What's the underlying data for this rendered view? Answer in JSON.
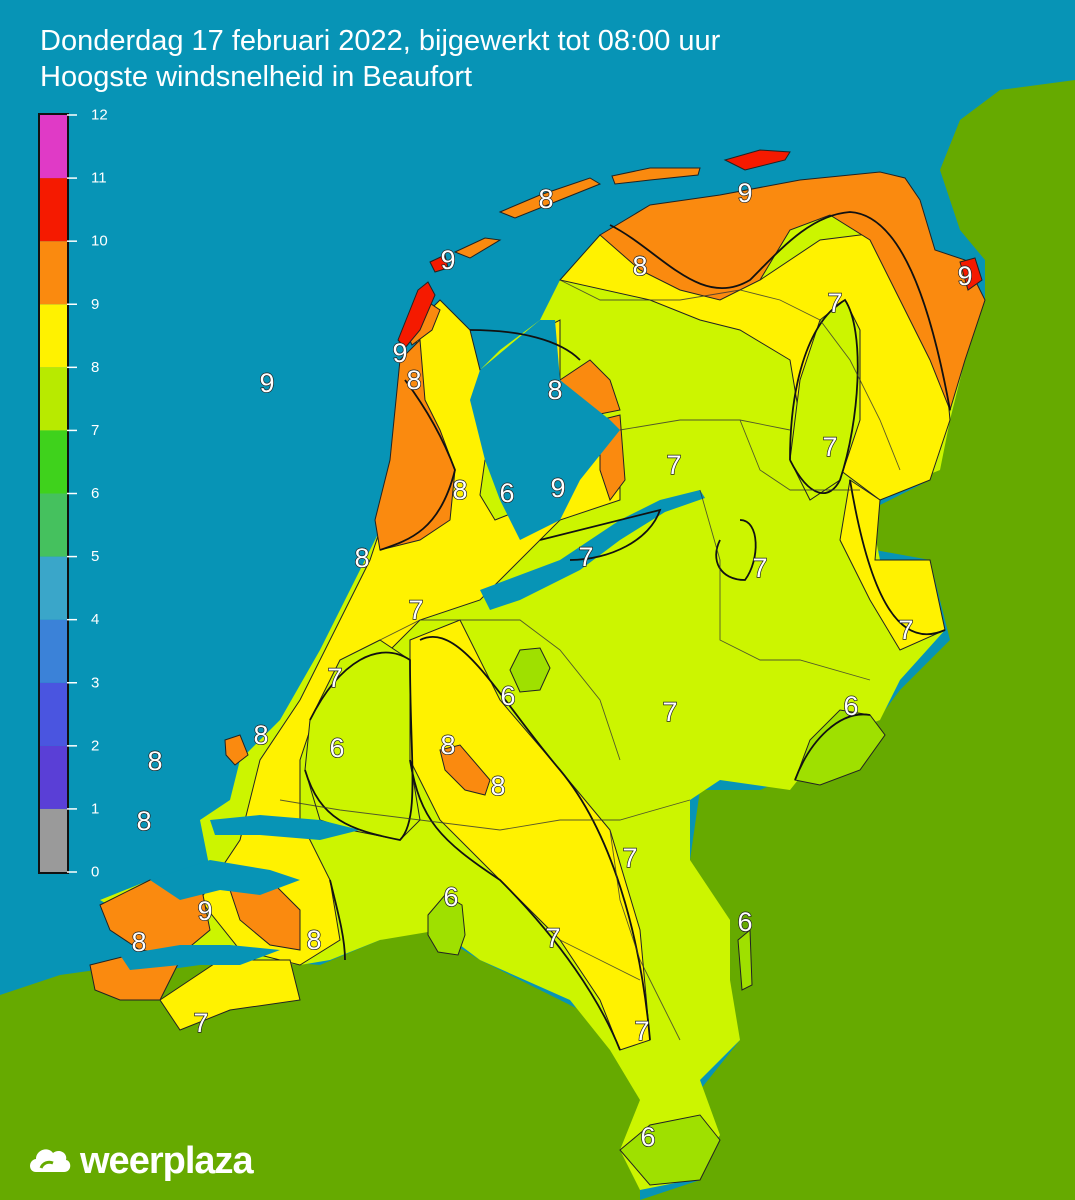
{
  "title": "Donderdag 17 februari 2022, bijgewerkt tot 08:00 uur",
  "subtitle": "Hoogste windsnelheid in Beaufort",
  "brand": "weerplaza",
  "colors": {
    "sea": "#0794b6",
    "land_outside": "#66aa00",
    "bft_6": "#9fe000",
    "bft_7": "#ccf500",
    "bft_8": "#fff200",
    "bft_9": "#fa8a0f",
    "bft_10": "#f51a00"
  },
  "legend": {
    "unit": "Beaufort",
    "ticks": [
      "0",
      "1",
      "2",
      "3",
      "4",
      "5",
      "6",
      "7",
      "8",
      "9",
      "10",
      "11",
      "12"
    ],
    "colors": [
      "#9a9a9a",
      "#5a3fd6",
      "#4a55e0",
      "#3b82d8",
      "#3aa6c9",
      "#45c15e",
      "#3fd21c",
      "#b8ea00",
      "#fff200",
      "#fa8a0f",
      "#f51a00",
      "#e03ac6",
      "#b04ac4"
    ]
  },
  "map_labels": [
    {
      "text": "9",
      "place": "North Sea offshore"
    },
    {
      "text": "8",
      "place": "Zeeland coast offshore"
    },
    {
      "text": "8",
      "place": "Schouwen offshore"
    },
    {
      "text": "8",
      "place": "Terschelling"
    },
    {
      "text": "9",
      "place": "Schiermonnikoog"
    },
    {
      "text": "9",
      "place": "Vlieland"
    },
    {
      "text": "9",
      "place": "Texel south"
    },
    {
      "text": "8",
      "place": "Den Helder"
    },
    {
      "text": "8",
      "place": "Groningen west"
    },
    {
      "text": "9",
      "place": "Delfzijl"
    },
    {
      "text": "7",
      "place": "Drenthe north"
    },
    {
      "text": "8",
      "place": "Stavoren"
    },
    {
      "text": "7",
      "place": "Drenthe central"
    },
    {
      "text": "8",
      "place": "Noord-Holland coast"
    },
    {
      "text": "6",
      "place": "Markermeer west"
    },
    {
      "text": "9",
      "place": "IJsselmeer"
    },
    {
      "text": "7",
      "place": "Noordoostpolder"
    },
    {
      "text": "8",
      "place": "IJmuiden"
    },
    {
      "text": "7",
      "place": "Flevoland"
    },
    {
      "text": "7",
      "place": "Overijssel"
    },
    {
      "text": "7",
      "place": "Amsterdam"
    },
    {
      "text": "7",
      "place": "Twente"
    },
    {
      "text": "7",
      "place": "Haarlem south"
    },
    {
      "text": "6",
      "place": "Utrecht heuvelrug"
    },
    {
      "text": "7",
      "place": "Gelderland"
    },
    {
      "text": "6",
      "place": "Achterhoek"
    },
    {
      "text": "8",
      "place": "Hoek van Holland"
    },
    {
      "text": "6",
      "place": "Zuid-Holland inland"
    },
    {
      "text": "8",
      "place": "Betuwe"
    },
    {
      "text": "8",
      "place": "Rivierengebied"
    },
    {
      "text": "7",
      "place": "Noord-Brabant north"
    },
    {
      "text": "6",
      "place": "Brabant west"
    },
    {
      "text": "8",
      "place": "Bergen op Zoom"
    },
    {
      "text": "9",
      "place": "Walcheren"
    },
    {
      "text": "8",
      "place": "Oosterschelde"
    },
    {
      "text": "7",
      "place": "Eindhoven"
    },
    {
      "text": "6",
      "place": "Venlo"
    },
    {
      "text": "7",
      "place": "Zeeuws-Vlaanderen"
    },
    {
      "text": "7",
      "place": "Roermond"
    },
    {
      "text": "6",
      "place": "Zuid-Limburg"
    }
  ]
}
